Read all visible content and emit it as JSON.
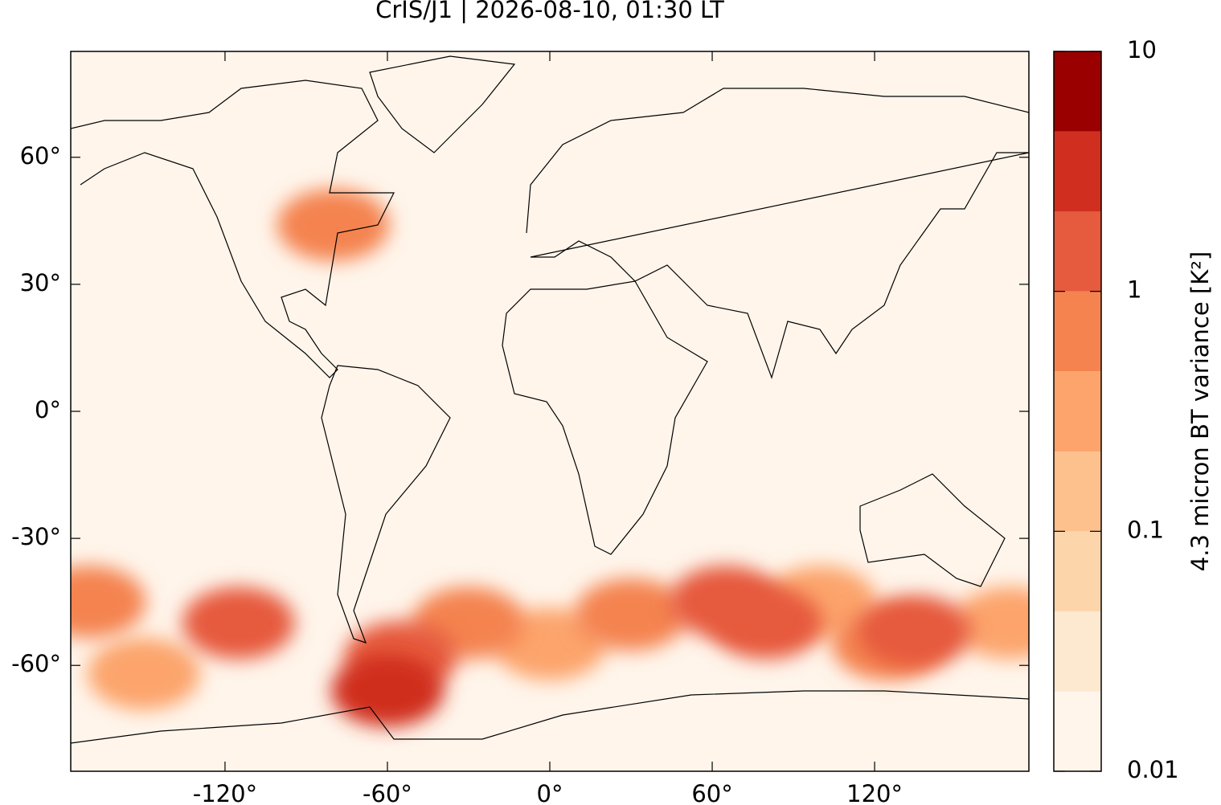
{
  "chart_data": {
    "type": "map",
    "title": "CrIS/J1 | 2026-08-10, 01:30 LT",
    "xlim": [
      -177,
      177
    ],
    "ylim": [
      -85,
      85
    ],
    "xticks": [
      {
        "value": -120,
        "label": "-120°"
      },
      {
        "value": -60,
        "label": "-60°"
      },
      {
        "value": 0,
        "label": "0°"
      },
      {
        "value": 60,
        "label": "60°"
      },
      {
        "value": 120,
        "label": "120°"
      }
    ],
    "yticks": [
      {
        "value": -60,
        "label": "-60°"
      },
      {
        "value": -30,
        "label": "-30°"
      },
      {
        "value": 0,
        "label": "0°"
      },
      {
        "value": 30,
        "label": "30°"
      },
      {
        "value": 60,
        "label": "60°"
      }
    ],
    "colorbar": {
      "label": "4.3 micron BT variance [K²]",
      "scale": "log",
      "lim": [
        0.01,
        10
      ],
      "ticks": [
        0.01,
        0.1,
        1,
        10
      ],
      "levels": [
        0.01,
        0.0215,
        0.0464,
        0.1,
        0.215,
        0.464,
        1,
        2.15,
        4.64,
        10
      ],
      "colors": [
        "#fff5eb",
        "#fde8d0",
        "#fdd5ab",
        "#fdc18d",
        "#fca46c",
        "#f4834f",
        "#e65a3d",
        "#d02e1f",
        "#9b0000"
      ]
    },
    "hotspots": [
      {
        "lon": -150,
        "lat": -62,
        "value": 0.3
      },
      {
        "lon": 0,
        "lat": -55,
        "value": 0.35
      },
      {
        "lon": 100,
        "lat": -45,
        "value": 0.35
      },
      {
        "lon": 170,
        "lat": -50,
        "value": 0.4
      },
      {
        "lon": -170,
        "lat": -45,
        "value": 0.5
      },
      {
        "lon": -30,
        "lat": -50,
        "value": 0.6
      },
      {
        "lon": 30,
        "lat": -48,
        "value": 0.5
      },
      {
        "lon": 125,
        "lat": -55,
        "value": 0.7
      },
      {
        "lon": -80,
        "lat": 44,
        "value": 0.6
      },
      {
        "lon": -55,
        "lat": -58,
        "value": 1.1
      },
      {
        "lon": 80,
        "lat": -50,
        "value": 1.0
      },
      {
        "lon": -115,
        "lat": -50,
        "value": 1.3
      },
      {
        "lon": 65,
        "lat": -45,
        "value": 1.3
      },
      {
        "lon": 135,
        "lat": -52,
        "value": 1.8
      },
      {
        "lon": -60,
        "lat": -66,
        "value": 4
      }
    ]
  }
}
